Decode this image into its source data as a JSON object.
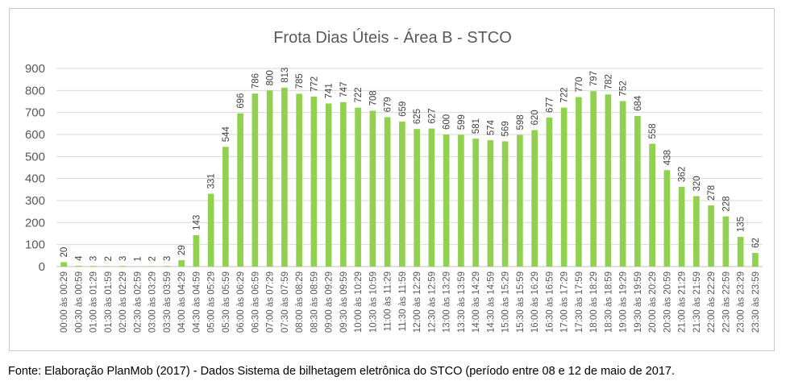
{
  "chart_data": {
    "type": "bar",
    "title": "Frota Dias Úteis - Área B - STCO",
    "ylim": [
      0,
      900
    ],
    "yticks": [
      0,
      100,
      200,
      300,
      400,
      500,
      600,
      700,
      800,
      900
    ],
    "grid": true,
    "legend": "none",
    "bar_color": "#92d050",
    "categories": [
      "00:00 às 00:29",
      "00:30 às 00:59",
      "01:00 às 01:29",
      "01:30 às 01:59",
      "02:00 às 02:29",
      "02:30 às 02:59",
      "03:00 às 03:29",
      "03:30 às 03:59",
      "04:00 às 04:29",
      "04:30 às 04:59",
      "05:00 às 05:29",
      "05:30 às 05:59",
      "06:00 às 06:29",
      "06:30 às 06:59",
      "07:00 às 07:29",
      "07:30 às 07:59",
      "08:00 às 08:29",
      "08:30 às 08:59",
      "09:00 às 09:29",
      "09:30 às 09:59",
      "10:00 às 10:29",
      "10:30 às 10:59",
      "11:00 às 11:29",
      "11:30 às 11:59",
      "12:00 às 12:29",
      "12:30 às 12:59",
      "13:00 às 13:29",
      "13:30 às 13:59",
      "14:00 às 14:29",
      "14:30 às 14:59",
      "15:00 às 15:29",
      "15:30 às 15:59",
      "16:00 às 16:29",
      "16:30 às 16:59",
      "17:00 às 17:29",
      "17:30 às 17:59",
      "18:00 às 18:29",
      "18:30 às 18:59",
      "19:00 às 19:29",
      "19:30 às 19:59",
      "20:00 às 20:29",
      "20:30 às 20:59",
      "21:00 às 21:29",
      "21:30 às 21:59",
      "22:00 às 22:29",
      "22:30 às 22:59",
      "23:00 às 23:29",
      "23:30 às 23:59"
    ],
    "values": [
      20,
      4,
      3,
      2,
      3,
      1,
      2,
      3,
      29,
      143,
      331,
      544,
      696,
      786,
      800,
      813,
      785,
      772,
      741,
      747,
      722,
      708,
      679,
      659,
      625,
      627,
      600,
      599,
      581,
      574,
      569,
      598,
      620,
      677,
      722,
      770,
      797,
      782,
      752,
      684,
      558,
      438,
      362,
      320,
      278,
      228,
      135,
      62
    ]
  },
  "caption": "Fonte: Elaboração PlanMob (2017) - Dados Sistema de bilhetagem eletrônica do STCO (período entre 08 e 12 de maio de 2017."
}
